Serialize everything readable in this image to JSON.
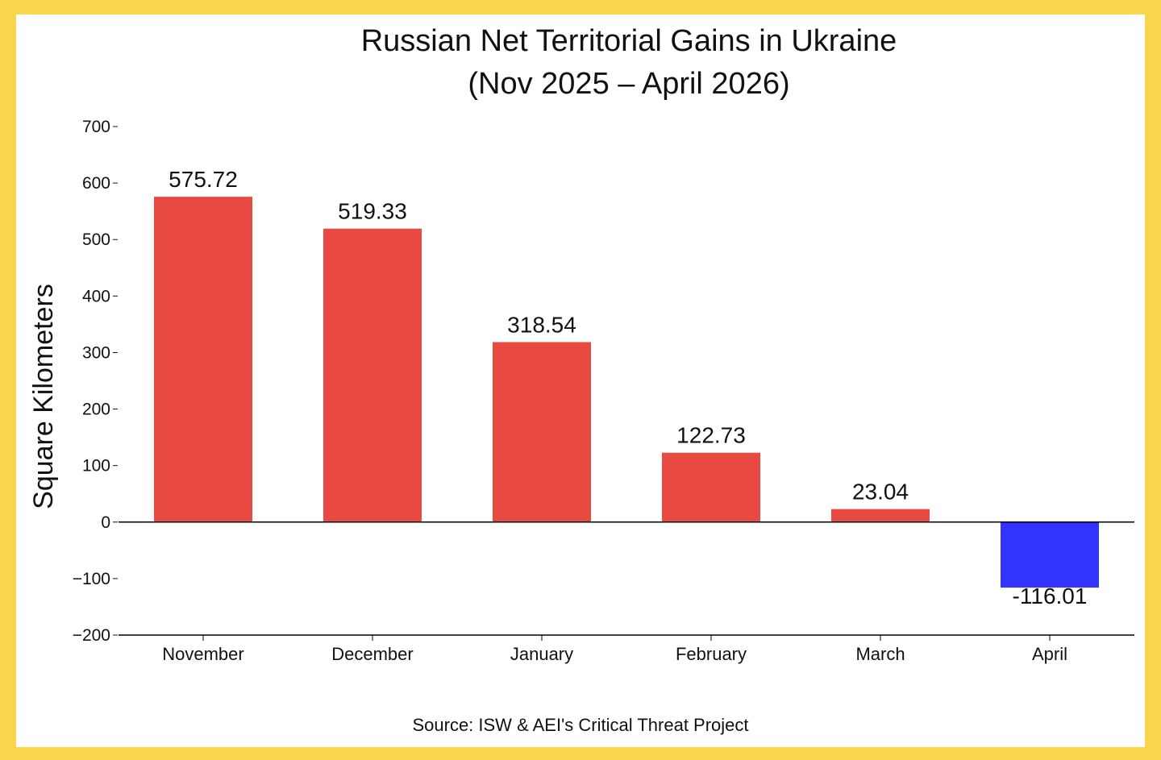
{
  "colors": {
    "border": "#f8d54a",
    "background": "#ffffff",
    "positive": "#e84a41",
    "negative": "#3333ff",
    "text": "#111111"
  },
  "chart_data": {
    "type": "bar",
    "title_lines": [
      "Russian Net Territorial Gains in Ukraine",
      "(Nov 2025 – April 2026)"
    ],
    "xlabel": "",
    "ylabel": "Square Kilometers",
    "categories": [
      "November",
      "December",
      "January",
      "February",
      "March",
      "April"
    ],
    "values": [
      575.72,
      519.33,
      318.54,
      122.73,
      23.04,
      -116.01
    ],
    "value_labels": [
      "575.72",
      "519.33",
      "318.54",
      "122.73",
      "23.04",
      "-116.01"
    ],
    "ylim": [
      -200,
      700
    ],
    "yticks": [
      700,
      600,
      500,
      400,
      300,
      200,
      100,
      0,
      -100,
      -200
    ],
    "ytick_labels": [
      "700",
      "600",
      "500",
      "400",
      "300",
      "200",
      "100",
      "0",
      "−100",
      "−200"
    ],
    "grid": false,
    "zero_line": true,
    "source": "Source: ISW & AEI's Critical Threat Project"
  }
}
